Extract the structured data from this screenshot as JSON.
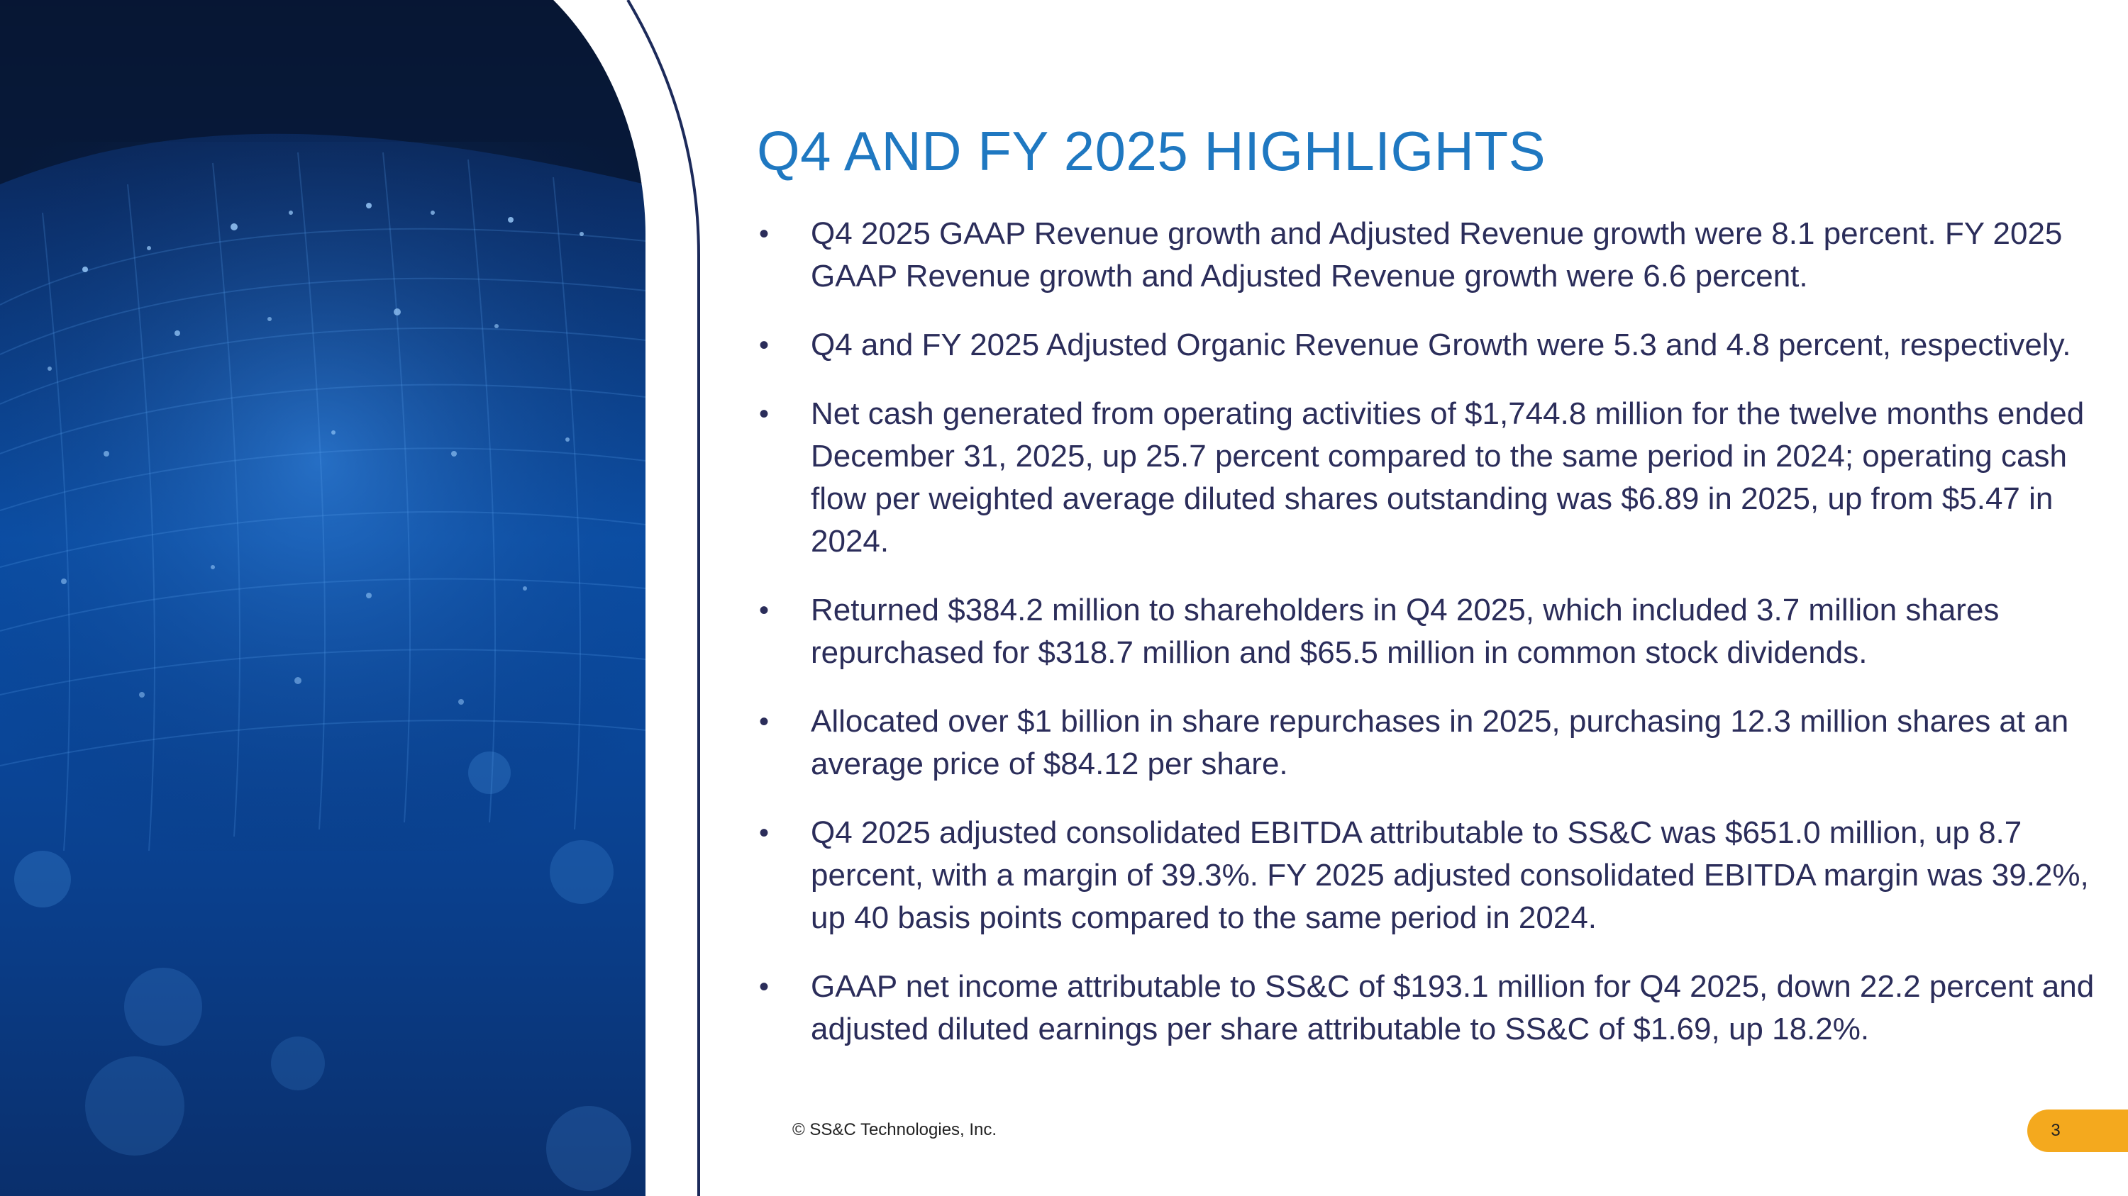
{
  "slide": {
    "title": "Q4 AND FY 2025 HIGHLIGHTS",
    "bullets": [
      "Q4 2025 GAAP Revenue growth and Adjusted Revenue growth were 8.1 percent. FY 2025 GAAP Revenue growth and Adjusted Revenue growth were 6.6 percent.",
      "Q4 and FY 2025 Adjusted Organic Revenue Growth were 5.3 and 4.8 percent, respectively.",
      "Net cash generated from operating activities of $1,744.8 million for the twelve months ended December 31, 2025, up 25.7 percent compared to the same period in 2024; operating cash flow per weighted average diluted shares outstanding was $6.89 in 2025, up from $5.47 in 2024.",
      "Returned $384.2 million to shareholders in Q4 2025, which included 3.7 million shares repurchased for $318.7 million and $65.5 million in common stock dividends.",
      "Allocated over $1 billion in share repurchases in 2025, purchasing 12.3 million shares at an average price of $84.12 per share.",
      "Q4 2025 adjusted consolidated EBITDA attributable to SS&C was $651.0 million, up 8.7 percent, with a margin of 39.3%. FY 2025 adjusted consolidated EBITDA margin was 39.2%, up 40 basis points compared to the same period in 2024.",
      "GAAP net income attributable to SS&C of $193.1 million for Q4 2025, down 22.2 percent and adjusted diluted earnings per share attributable to SS&C of $1.69, up 18.2%."
    ],
    "bullet_glyph": "•",
    "footer": "© SS&C Technologies, Inc.",
    "page_number": "3"
  },
  "colors": {
    "title": "#1f78c1",
    "body_text": "#2b2d5a",
    "accent_line": "#1c2a5a",
    "page_tab": "#f4a91e",
    "image_dark": "#06142f",
    "image_blue": "#0b4fa8"
  }
}
